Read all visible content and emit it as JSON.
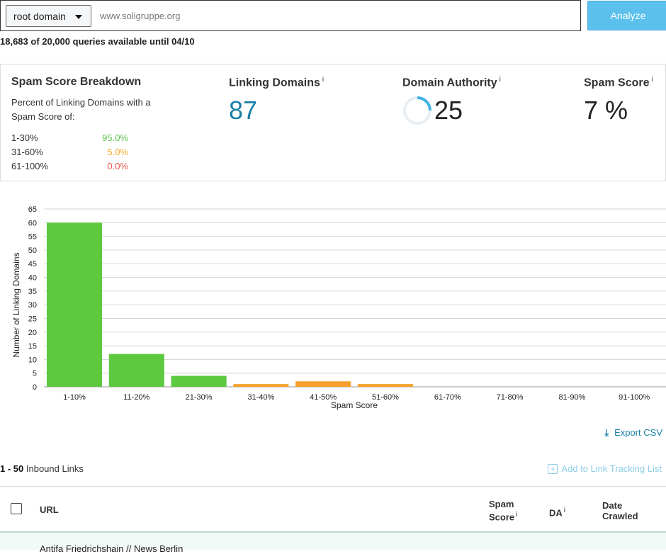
{
  "search": {
    "scope": "root domain",
    "url": "www.soligruppe.org",
    "analyze_label": "Analyze",
    "quota": "18,683 of 20,000 queries available until 04/10"
  },
  "metrics": {
    "breakdown_title": "Spam Score Breakdown",
    "breakdown_desc": "Percent of Linking Domains with a Spam Score of:",
    "rows": [
      {
        "range": "1-30%",
        "value": "95.0%",
        "color": "#5cc24a"
      },
      {
        "range": "31-60%",
        "value": "5.0%",
        "color": "#f5a623"
      },
      {
        "range": "61-100%",
        "value": "0.0%",
        "color": "#e8534c"
      }
    ],
    "linking_domains_title": "Linking Domains",
    "linking_domains": "87",
    "da_title": "Domain Authority",
    "da": "25",
    "da_fraction": 0.25,
    "spam_title": "Spam Score",
    "spam": "7 %",
    "info_glyph": "i"
  },
  "chart_data": {
    "type": "bar",
    "categories": [
      "1-10%",
      "11-20%",
      "21-30%",
      "31-40%",
      "41-50%",
      "51-60%",
      "61-70%",
      "71-80%",
      "81-90%",
      "91-100%"
    ],
    "values": [
      60,
      12,
      4,
      1,
      2,
      1,
      0,
      0,
      0,
      0
    ],
    "colors": [
      "#5cc93f",
      "#5cc93f",
      "#5cc93f",
      "#f6a02b",
      "#f6a02b",
      "#f6a02b",
      "#e8534c",
      "#e8534c",
      "#e8534c",
      "#e8534c"
    ],
    "xlabel": "Spam Score",
    "ylabel": "Number of Linking Domains",
    "ylim": [
      0,
      65
    ],
    "yticks": [
      0,
      5,
      10,
      15,
      20,
      25,
      30,
      35,
      40,
      45,
      50,
      55,
      60,
      65
    ],
    "grid": true
  },
  "export_label": "Export CSV",
  "links": {
    "range": "1 - 50",
    "label": "Inbound Links",
    "track_label": "Add to Link Tracking List"
  },
  "table": {
    "col_url": "URL",
    "col_spam_1": "Spam",
    "col_spam_2": "Score",
    "col_da": "DA",
    "col_date_1": "Date",
    "col_date_2": "Crawled",
    "first_row_title": "Antifa Friedrichshain // News Berlin"
  }
}
